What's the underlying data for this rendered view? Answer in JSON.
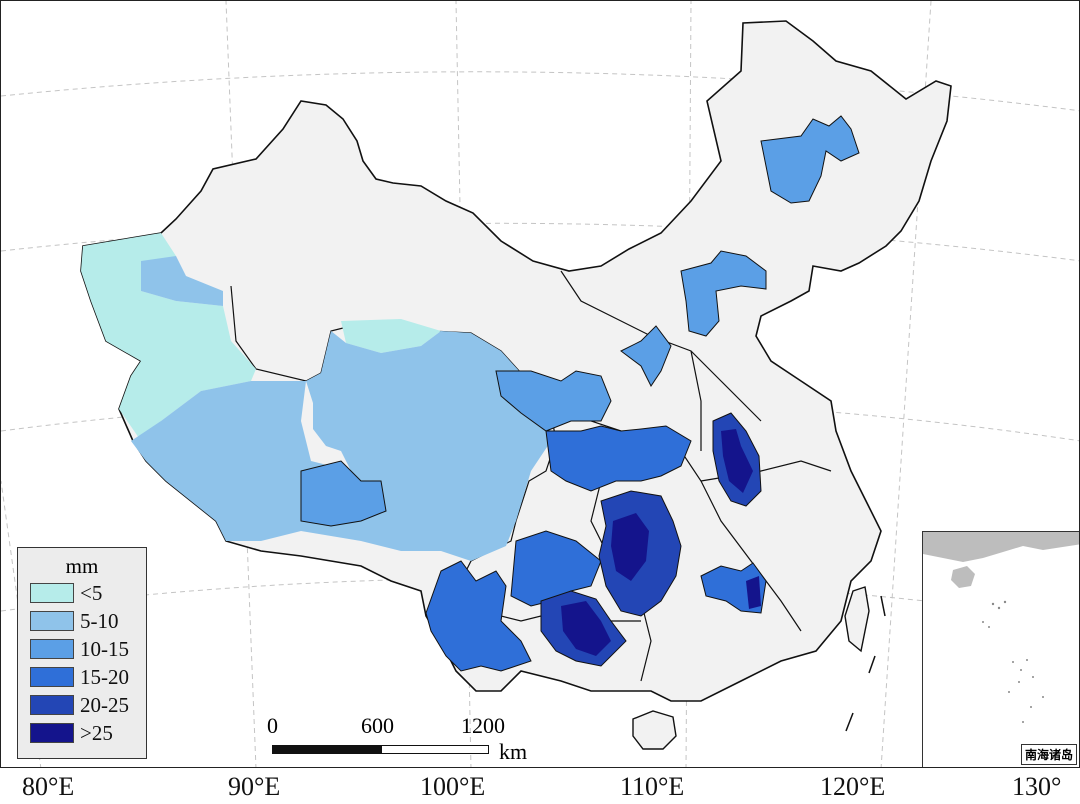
{
  "map": {
    "lon_labels": [
      "80°E",
      "90°E",
      "100°E",
      "110°E",
      "120°E",
      "130°"
    ],
    "colors": {
      "background_land": "#f2f2f2",
      "border": "#111111",
      "graticule": "#bdbdbd",
      "class_lt5": "#b6ecea",
      "class_5_10": "#8fc3ea",
      "class_10_15": "#5b9fe6",
      "class_15_20": "#2f6fd8",
      "class_20_25": "#2346b5",
      "class_gt25": "#14148c"
    }
  },
  "legend": {
    "unit": "mm",
    "items": [
      {
        "label": "<5",
        "color": "#b6ecea"
      },
      {
        "label": "5-10",
        "color": "#8fc3ea"
      },
      {
        "label": "10-15",
        "color": "#5b9fe6"
      },
      {
        "label": "15-20",
        "color": "#2f6fd8"
      },
      {
        "label": "20-25",
        "color": "#2346b5"
      },
      {
        "label": ">25",
        "color": "#14148c"
      }
    ]
  },
  "scalebar": {
    "ticks": [
      "0",
      "600",
      "1200"
    ],
    "unit": "km"
  },
  "inset": {
    "label": "南海诸岛"
  }
}
